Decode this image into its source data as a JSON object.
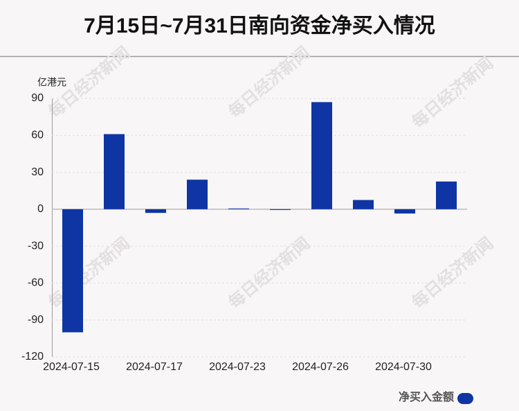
{
  "chart_data": {
    "type": "bar",
    "title": "7月15日~7月31日南向资金净买入情况",
    "y_label": "亿港元",
    "watermark": "每日经济新闻",
    "categories": [
      "2024-07-15",
      null,
      "2024-07-17",
      null,
      "2024-07-23",
      null,
      "2024-07-26",
      null,
      "2024-07-30",
      null
    ],
    "series": [
      {
        "name": "净买入金额",
        "color": "#0e35a3",
        "values": [
          -100,
          61,
          -3,
          24,
          0.6,
          -0.6,
          87,
          7.5,
          -3.5,
          22.5
        ]
      }
    ],
    "ylim": [
      -120,
      90
    ],
    "yticks": [
      -120,
      -90,
      -60,
      -30,
      0,
      30,
      60,
      90
    ],
    "grid": true
  }
}
